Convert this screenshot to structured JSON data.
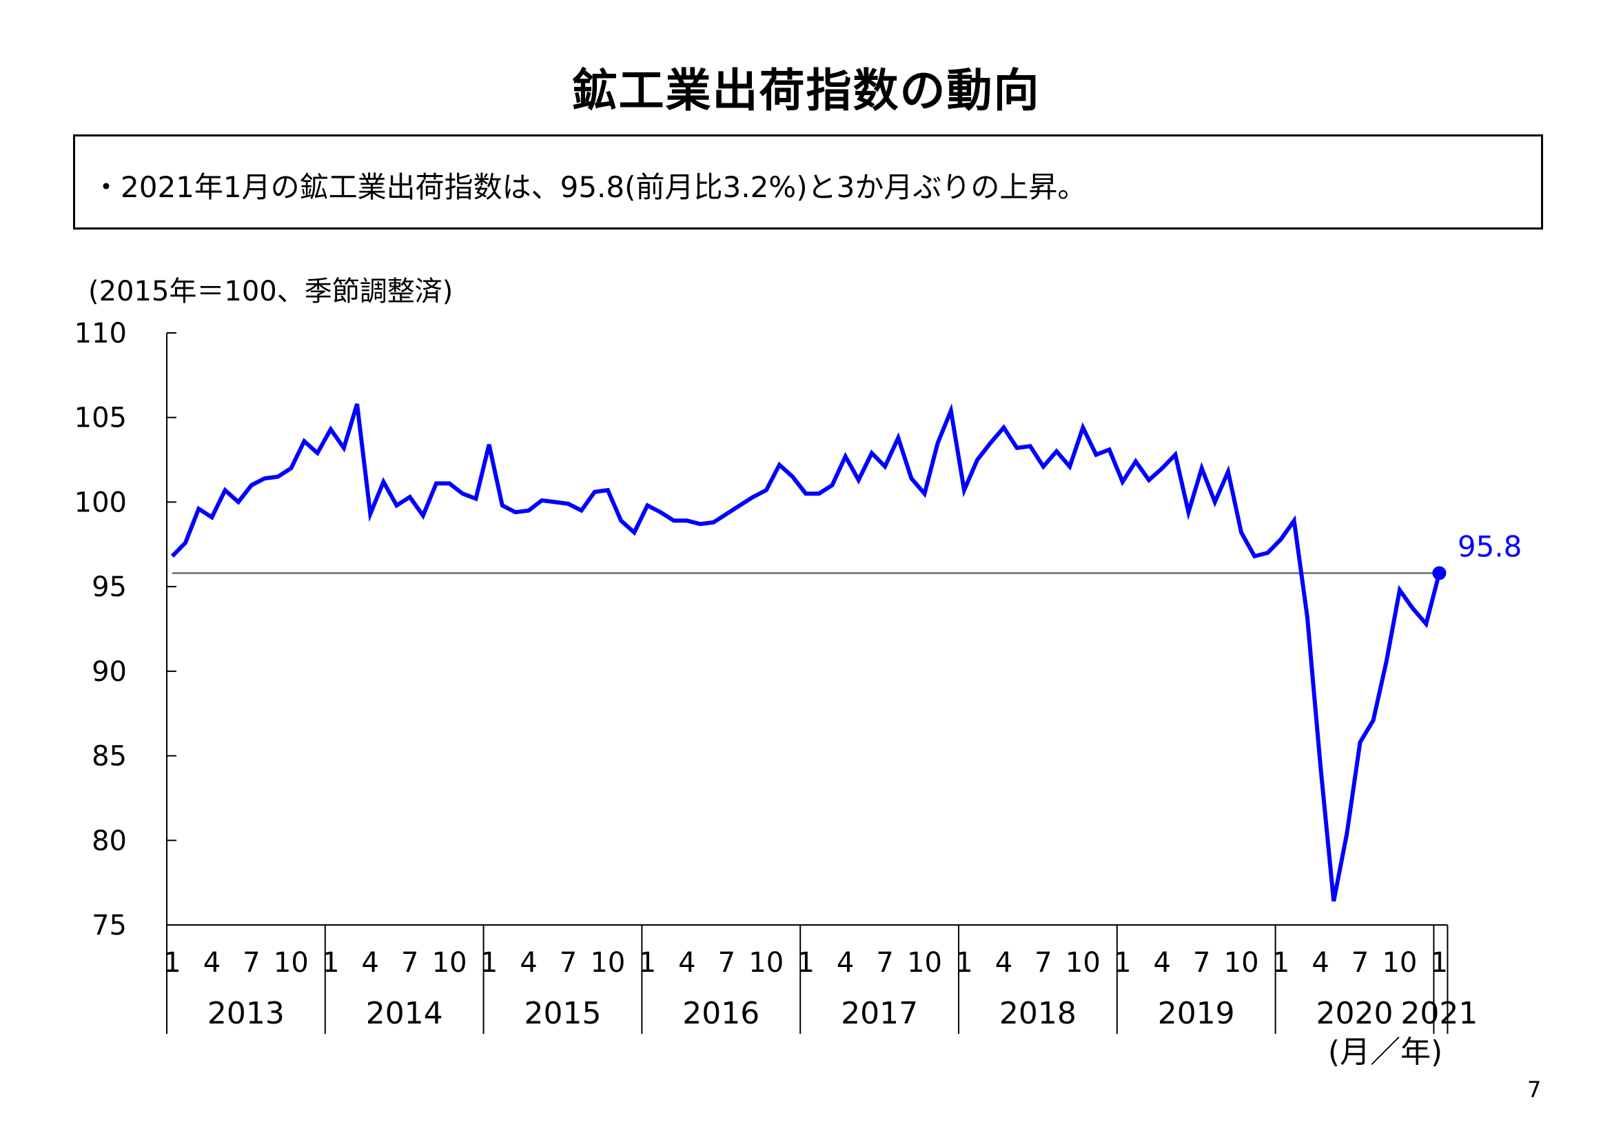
{
  "title": "鉱工業出荷指数の動向",
  "summary": "・2021年1月の鉱工業出荷指数は、95.8(前月比3.2%)と3か月ぶりの上昇。",
  "unit_note": "(2015年＝100、季節調整済)",
  "page_number": "7",
  "colors": {
    "series": "#0000ff",
    "reference_line": "#808080",
    "axis": "#000000"
  },
  "chart_data": {
    "type": "line",
    "title": "",
    "xlabel": "(月／年)",
    "ylabel": "",
    "ylim": [
      75,
      110
    ],
    "yticks": [
      75,
      80,
      85,
      90,
      95,
      100,
      105,
      110
    ],
    "grid": false,
    "year_labels": [
      "2013",
      "2014",
      "2015",
      "2016",
      "2017",
      "2018",
      "2019",
      "2020",
      "2021"
    ],
    "month_tick_labels": [
      "1",
      "4",
      "7",
      "10"
    ],
    "final_month_label": "1",
    "last_value_label": "95.8",
    "reference_line": 95.8,
    "series": [
      {
        "values": [
          96.8,
          97.6,
          99.6,
          99.1,
          100.7,
          100.0,
          101.0,
          101.4,
          101.5,
          102.0,
          103.6,
          102.9,
          104.3,
          103.2,
          105.8,
          99.3,
          101.2,
          99.8,
          100.3,
          99.2,
          101.1,
          101.1,
          100.5,
          100.2,
          103.4,
          99.8,
          99.4,
          99.5,
          100.1,
          100.0,
          99.9,
          99.5,
          100.6,
          100.7,
          98.9,
          98.2,
          99.8,
          99.4,
          98.9,
          98.9,
          98.7,
          98.8,
          99.3,
          99.8,
          100.3,
          100.7,
          102.2,
          101.5,
          100.5,
          100.5,
          101.0,
          102.7,
          101.3,
          102.9,
          102.1,
          103.8,
          101.4,
          100.5,
          103.5,
          105.4,
          100.7,
          102.5,
          103.5,
          104.4,
          103.2,
          103.3,
          102.1,
          103.0,
          102.1,
          104.4,
          102.8,
          103.1,
          101.2,
          102.4,
          101.3,
          102.0,
          102.8,
          99.4,
          102.0,
          100.0,
          101.8,
          98.2,
          96.8,
          97.0,
          97.8,
          98.9,
          93.2,
          84.4,
          76.4,
          80.4,
          85.8,
          87.1,
          90.6,
          94.8,
          93.7,
          92.8,
          95.8
        ]
      }
    ]
  }
}
